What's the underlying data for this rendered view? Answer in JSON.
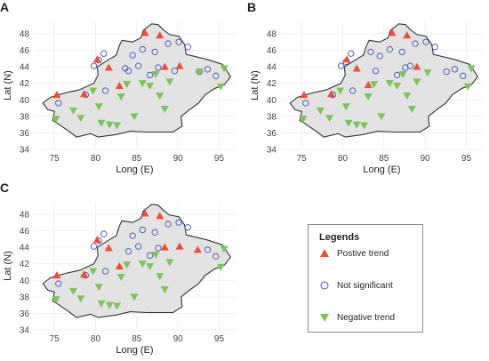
{
  "panels": [
    {
      "label": "A",
      "positive": [
        [
          75.3,
          40.6
        ],
        [
          78.6,
          40.7
        ],
        [
          80.2,
          44.9
        ],
        [
          81.6,
          43.9
        ],
        [
          82.9,
          41.7
        ],
        [
          86.0,
          48.1
        ],
        [
          87.8,
          47.8
        ],
        [
          88.4,
          44.0
        ],
        [
          90.2,
          44.1
        ]
      ],
      "not_significant": [
        [
          75.5,
          39.6
        ],
        [
          79.8,
          44.1
        ],
        [
          80.4,
          44.8
        ],
        [
          81.0,
          45.6
        ],
        [
          84.5,
          45.4
        ],
        [
          85.7,
          46.1
        ],
        [
          87.2,
          45.8
        ],
        [
          88.8,
          46.8
        ],
        [
          90.1,
          47.0
        ],
        [
          91.2,
          46.4
        ],
        [
          84.0,
          43.5
        ],
        [
          86.6,
          43.0
        ],
        [
          87.6,
          43.9
        ],
        [
          92.6,
          43.4
        ],
        [
          93.6,
          43.7
        ],
        [
          94.6,
          42.9
        ],
        [
          81.2,
          41.1
        ],
        [
          78.8,
          40.6
        ],
        [
          83.6,
          43.8
        ],
        [
          85.2,
          44.1
        ],
        [
          89.6,
          43.5
        ]
      ],
      "negative": [
        [
          75.2,
          37.7
        ],
        [
          77.3,
          38.7
        ],
        [
          78.2,
          37.8
        ],
        [
          79.7,
          41.1
        ],
        [
          80.4,
          39.2
        ],
        [
          80.7,
          37.2
        ],
        [
          81.7,
          37.0
        ],
        [
          82.6,
          36.9
        ],
        [
          83.1,
          40.4
        ],
        [
          83.8,
          41.9
        ],
        [
          84.7,
          38.0
        ],
        [
          85.7,
          42.0
        ],
        [
          86.6,
          41.7
        ],
        [
          87.3,
          43.1
        ],
        [
          87.8,
          40.5
        ],
        [
          88.4,
          38.9
        ],
        [
          89.0,
          42.2
        ],
        [
          92.6,
          43.4
        ],
        [
          95.2,
          41.6
        ],
        [
          95.6,
          43.8
        ]
      ]
    },
    {
      "label": "B",
      "positive": [
        [
          75.3,
          40.6
        ],
        [
          78.6,
          40.7
        ],
        [
          80.5,
          44.9
        ],
        [
          81.7,
          43.8
        ],
        [
          83.1,
          41.8
        ],
        [
          86.0,
          48.1
        ],
        [
          87.8,
          47.8
        ],
        [
          89.0,
          44.0
        ]
      ],
      "not_significant": [
        [
          75.5,
          39.6
        ],
        [
          79.8,
          44.1
        ],
        [
          80.4,
          44.6
        ],
        [
          81.0,
          45.6
        ],
        [
          83.4,
          45.8
        ],
        [
          84.5,
          45.3
        ],
        [
          85.7,
          46.1
        ],
        [
          87.2,
          45.8
        ],
        [
          88.8,
          46.8
        ],
        [
          90.1,
          47.0
        ],
        [
          91.2,
          46.4
        ],
        [
          84.0,
          43.5
        ],
        [
          86.6,
          43.0
        ],
        [
          87.6,
          43.9
        ],
        [
          92.6,
          43.4
        ],
        [
          93.6,
          43.7
        ],
        [
          94.6,
          42.9
        ],
        [
          81.2,
          41.1
        ],
        [
          78.8,
          40.6
        ],
        [
          88.2,
          44.1
        ]
      ],
      "negative": [
        [
          75.2,
          37.7
        ],
        [
          77.3,
          38.7
        ],
        [
          78.4,
          37.8
        ],
        [
          79.7,
          41.1
        ],
        [
          80.4,
          39.2
        ],
        [
          80.7,
          37.2
        ],
        [
          81.7,
          37.0
        ],
        [
          82.6,
          36.9
        ],
        [
          83.1,
          40.4
        ],
        [
          83.8,
          41.9
        ],
        [
          84.7,
          38.0
        ],
        [
          85.7,
          42.0
        ],
        [
          86.6,
          41.7
        ],
        [
          87.3,
          43.1
        ],
        [
          87.8,
          40.5
        ],
        [
          88.4,
          38.9
        ],
        [
          89.0,
          42.2
        ],
        [
          90.3,
          43.3
        ],
        [
          95.2,
          41.6
        ],
        [
          95.6,
          43.8
        ]
      ]
    },
    {
      "label": "C",
      "positive": [
        [
          75.3,
          40.6
        ],
        [
          78.6,
          40.7
        ],
        [
          80.2,
          44.9
        ],
        [
          81.6,
          43.9
        ],
        [
          82.9,
          41.7
        ],
        [
          86.0,
          48.1
        ],
        [
          87.8,
          47.8
        ],
        [
          88.4,
          44.0
        ],
        [
          90.2,
          44.1
        ],
        [
          92.4,
          43.7
        ]
      ],
      "not_significant": [
        [
          75.5,
          39.6
        ],
        [
          79.8,
          44.1
        ],
        [
          80.4,
          44.8
        ],
        [
          81.0,
          45.6
        ],
        [
          84.5,
          45.4
        ],
        [
          85.7,
          46.1
        ],
        [
          87.2,
          45.8
        ],
        [
          88.8,
          46.8
        ],
        [
          90.1,
          47.0
        ],
        [
          91.2,
          46.4
        ],
        [
          84.0,
          43.5
        ],
        [
          86.6,
          43.0
        ],
        [
          87.6,
          43.9
        ],
        [
          93.6,
          43.7
        ],
        [
          94.6,
          42.9
        ],
        [
          81.2,
          41.1
        ],
        [
          78.8,
          40.6
        ],
        [
          85.2,
          44.1
        ]
      ],
      "negative": [
        [
          75.2,
          37.7
        ],
        [
          77.3,
          38.7
        ],
        [
          78.2,
          37.8
        ],
        [
          79.7,
          41.1
        ],
        [
          80.4,
          39.2
        ],
        [
          80.7,
          37.2
        ],
        [
          81.7,
          37.0
        ],
        [
          82.6,
          36.9
        ],
        [
          83.1,
          40.4
        ],
        [
          83.8,
          41.9
        ],
        [
          84.7,
          38.0
        ],
        [
          85.7,
          42.0
        ],
        [
          86.6,
          41.7
        ],
        [
          87.3,
          43.1
        ],
        [
          87.8,
          40.5
        ],
        [
          88.4,
          38.9
        ],
        [
          89.0,
          42.2
        ],
        [
          95.2,
          41.6
        ],
        [
          95.6,
          43.8
        ]
      ]
    }
  ],
  "axes": {
    "xlabel": "Long (E)",
    "ylabel": "Lat (N)",
    "xticks": [
      "75",
      "80",
      "85",
      "90",
      "95"
    ],
    "yticks": [
      "34",
      "36",
      "38",
      "40",
      "42",
      "44",
      "46",
      "48"
    ],
    "xlim": [
      72.5,
      97
    ],
    "ylim": [
      34,
      49.5
    ]
  },
  "legend": {
    "title": "Legends",
    "positive": "Postive trend",
    "not_significant": "Not significant",
    "negative": "Negative trend"
  },
  "colors": {
    "positive": "#e8503a",
    "not_significant": "#3f55b5",
    "negative": "#7cc45a",
    "land": "#e3e3e3",
    "border": "#333333"
  },
  "region_outline": [
    [
      73.6,
      39.6
    ],
    [
      74.5,
      40.3
    ],
    [
      75.5,
      40.6
    ],
    [
      76.6,
      40.9
    ],
    [
      78.0,
      41.2
    ],
    [
      79.8,
      42.0
    ],
    [
      80.3,
      43.0
    ],
    [
      80.2,
      44.0
    ],
    [
      81.8,
      45.0
    ],
    [
      82.5,
      45.4
    ],
    [
      82.9,
      46.6
    ],
    [
      83.2,
      47.2
    ],
    [
      84.5,
      47.0
    ],
    [
      85.5,
      47.5
    ],
    [
      85.8,
      48.4
    ],
    [
      86.8,
      49.2
    ],
    [
      87.6,
      49.1
    ],
    [
      88.2,
      48.5
    ],
    [
      89.0,
      47.9
    ],
    [
      90.1,
      47.7
    ],
    [
      90.8,
      46.7
    ],
    [
      91.0,
      45.5
    ],
    [
      93.5,
      44.9
    ],
    [
      95.4,
      44.3
    ],
    [
      96.4,
      42.8
    ],
    [
      95.6,
      41.8
    ],
    [
      94.5,
      41.4
    ],
    [
      93.3,
      40.6
    ],
    [
      92.5,
      39.6
    ],
    [
      91.4,
      38.8
    ],
    [
      90.4,
      38.0
    ],
    [
      90.5,
      36.8
    ],
    [
      89.4,
      36.1
    ],
    [
      86.2,
      36.1
    ],
    [
      84.2,
      36.2
    ],
    [
      82.5,
      35.8
    ],
    [
      80.3,
      35.5
    ],
    [
      79.4,
      35.9
    ],
    [
      77.7,
      35.5
    ],
    [
      76.6,
      36.3
    ],
    [
      75.3,
      37.2
    ],
    [
      74.8,
      37.5
    ],
    [
      75.0,
      38.6
    ],
    [
      74.2,
      38.8
    ],
    [
      73.6,
      39.6
    ]
  ]
}
